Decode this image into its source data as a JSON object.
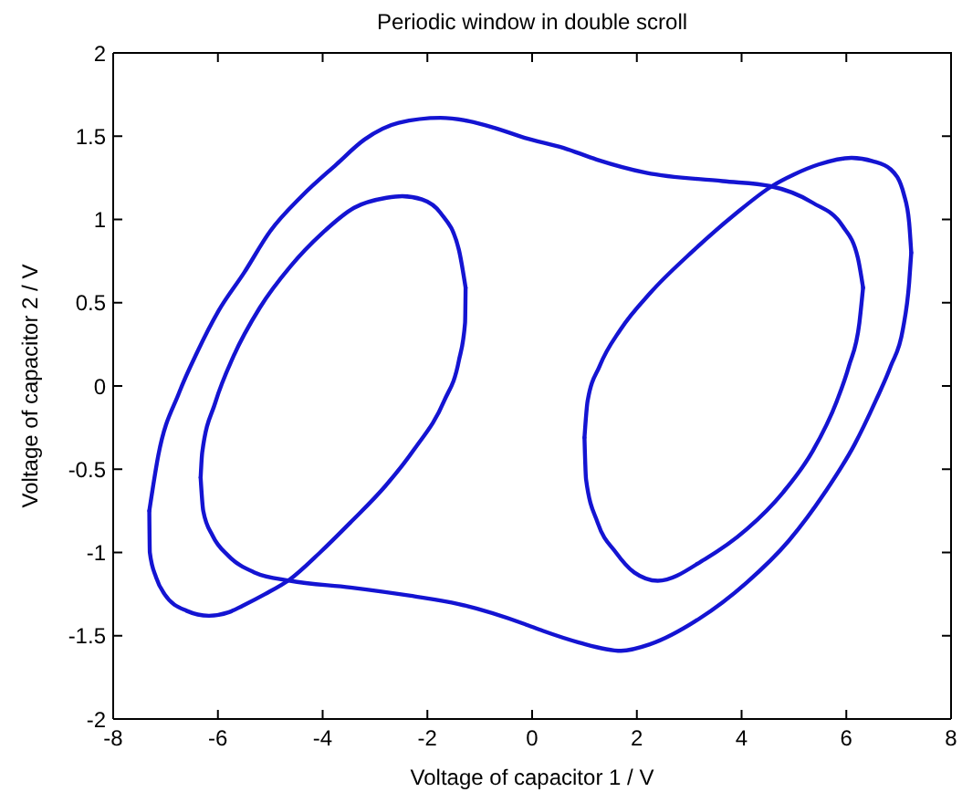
{
  "chart_data": {
    "type": "line",
    "title": "Periodic window in double scroll",
    "xlabel": "Voltage of capacitor 1 / V",
    "ylabel": "Voltage of capacitor 2 / V",
    "series": [
      {
        "color": "#1414d2",
        "x": [
          -7.31,
          -7.14,
          -6.74,
          -6.4,
          -5.99,
          -5.5,
          -5.0,
          -4.4,
          -3.74,
          -3.2,
          -2.55,
          -1.75,
          -1.2,
          -0.72,
          -0.14,
          0.6,
          1.23,
          2.18,
          3.64,
          4.55,
          5.36,
          5.93,
          6.22,
          6.32
        ],
        "values": [
          -0.75,
          -0.42,
          -0.04,
          0.2,
          0.45,
          0.68,
          0.93,
          1.14,
          1.33,
          1.48,
          1.58,
          1.61,
          1.59,
          1.55,
          1.49,
          1.43,
          1.36,
          1.28,
          1.23,
          1.2,
          1.1,
          0.96,
          0.77,
          0.59
        ]
      },
      {
        "color": "#1414d2",
        "x": [
          -7.31,
          -7.3,
          -7.18,
          -7.02,
          -6.6,
          -6.17,
          -5.8,
          -5.53,
          -5.1,
          -4.62,
          -4.05,
          -3.47,
          -2.8,
          -2.25,
          -1.68,
          -1.4,
          -1.28,
          -1.27
        ],
        "values": [
          -0.75,
          -1.0,
          -1.15,
          -1.25,
          -1.35,
          -1.38,
          -1.36,
          -1.32,
          -1.25,
          -1.16,
          -1.0,
          -0.82,
          -0.6,
          -0.38,
          -0.09,
          0.15,
          0.38,
          0.59
        ]
      },
      {
        "color": "#1414d2",
        "x": [
          -6.33,
          -6.3,
          -6.05,
          -5.7,
          -5.2,
          -4.61,
          -4.0,
          -3.4,
          -2.78,
          -2.48,
          -2.1,
          -1.75,
          -1.4,
          -1.27
        ],
        "values": [
          -0.55,
          -0.4,
          -0.1,
          0.18,
          0.47,
          0.72,
          0.92,
          1.07,
          1.13,
          1.14,
          1.12,
          1.04,
          0.82,
          0.59
        ]
      },
      {
        "color": "#1414d2",
        "x": [
          -6.33,
          -6.28,
          -6.1,
          -5.8,
          -5.3,
          -4.62,
          -3.47,
          -2.32,
          -1.4,
          -0.14,
          0.2,
          0.89,
          1.7,
          2.26,
          3.18,
          4.1,
          4.9,
          5.59,
          6.16,
          6.56,
          6.85,
          7.08,
          7.2,
          7.24
        ],
        "values": [
          -0.55,
          -0.75,
          -0.9,
          -1.02,
          -1.12,
          -1.17,
          -1.21,
          -1.26,
          -1.31,
          -1.43,
          -1.47,
          -1.54,
          -1.59,
          -1.55,
          -1.4,
          -1.18,
          -0.93,
          -0.64,
          -0.35,
          -0.09,
          0.12,
          0.34,
          0.62,
          0.8
        ]
      },
      {
        "color": "#1414d2",
        "x": [
          1.0,
          1.06,
          1.29,
          1.69,
          2.26,
          3.07,
          3.87,
          4.58,
          5.0,
          5.47,
          6.1,
          6.5,
          6.85,
          7.1,
          7.2,
          7.24
        ],
        "values": [
          -0.31,
          -0.09,
          0.12,
          0.34,
          0.56,
          0.81,
          1.03,
          1.2,
          1.27,
          1.33,
          1.37,
          1.35,
          1.3,
          1.15,
          0.98,
          0.8
        ]
      },
      {
        "color": "#1414d2",
        "x": [
          1.0,
          1.03,
          1.25,
          1.6,
          1.95,
          2.4,
          3.3,
          4.1,
          4.79,
          5.36,
          5.82,
          6.05,
          6.25,
          6.32
        ],
        "values": [
          -0.31,
          -0.56,
          -0.82,
          -1.0,
          -1.12,
          -1.17,
          -1.04,
          -0.86,
          -0.64,
          -0.39,
          -0.09,
          0.12,
          0.38,
          0.59
        ]
      }
    ],
    "xlim": [
      -8,
      8
    ],
    "xticks": [
      -8,
      -6,
      -4,
      -2,
      0,
      2,
      4,
      6,
      8
    ],
    "ylim": [
      -2,
      2
    ],
    "yticks": [
      -2,
      -1.5,
      -1,
      -0.5,
      0,
      0.5,
      1,
      1.5,
      2
    ],
    "marker": "none",
    "line_style": "solid"
  }
}
